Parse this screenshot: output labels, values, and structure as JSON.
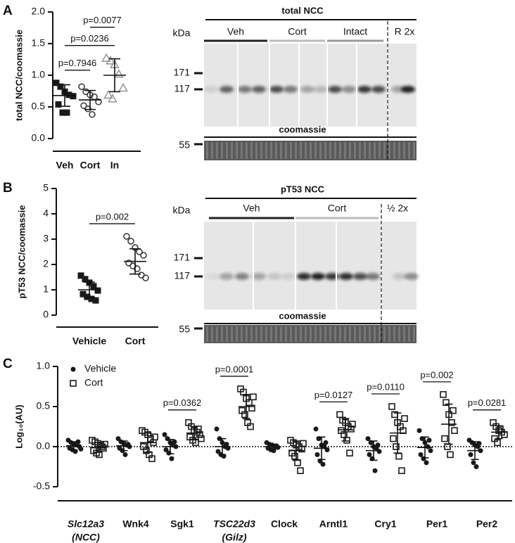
{
  "panels": [
    {
      "letter": "A",
      "blot": {
        "title": "total NCC",
        "unit": "kDa",
        "lanes": [
          {
            "label": "Veh",
            "color": "#222222"
          },
          {
            "label": "Cort",
            "color": "#bbbbbb"
          },
          {
            "label": "Intact",
            "color": "#999999"
          }
        ],
        "extra": "R 2x",
        "markers": [
          "171",
          "117"
        ],
        "loading": "coomassie",
        "loading_marker": "55"
      }
    },
    {
      "letter": "B",
      "blot": {
        "title": "pT53 NCC",
        "unit": "kDa",
        "lanes": [
          {
            "label": "Veh",
            "color": "#222222"
          },
          {
            "label": "Cort",
            "color": "#bbbbbb"
          }
        ],
        "extra": "½ 2x",
        "markers": [
          "171",
          "117"
        ],
        "loading": "coomassie",
        "loading_marker": "55"
      }
    },
    {
      "letter": "C"
    }
  ],
  "chart_data": [
    {
      "type": "dotplot",
      "y_label": "total NCC/coomassie",
      "categories": [
        "Veh",
        "Cort",
        "In"
      ],
      "ylim": [
        0,
        2
      ],
      "yticks": [
        {
          "value": 0,
          "label": "0.0"
        },
        0.5,
        {
          "value": 1,
          "label": "1.0"
        },
        1.5,
        {
          "value": 2,
          "label": "2.0"
        }
      ],
      "series": [
        {
          "markers": [
            "square",
            "circle",
            "triangle"
          ],
          "colors": [
            "#1a1a1a",
            "#333333",
            "#9a9a9a"
          ],
          "points": [
            [
              0.88,
              0.82,
              0.74,
              0.69,
              0.67,
              0.54,
              0.41,
              0.41
            ],
            [
              0.82,
              0.74,
              0.69,
              0.66,
              0.58,
              0.52,
              0.47,
              0.38
            ],
            [
              1.27,
              1.23,
              1.17,
              1.02,
              0.8,
              0.69,
              0.63
            ]
          ],
          "mean": [
            0.68,
            0.61,
            1.0
          ],
          "sd": [
            0.17,
            0.15,
            0.26
          ]
        }
      ],
      "annotations": [
        {
          "text": "p=0.7946",
          "between": [
            0,
            1
          ]
        },
        {
          "text": "p=0.0236",
          "between": [
            0,
            2
          ]
        },
        {
          "text": "p=0.0077",
          "between": [
            1,
            2
          ]
        }
      ]
    },
    {
      "type": "dotplot",
      "y_label": "pT53 NCC/coomassie",
      "categories": [
        "Vehicle",
        "Cort"
      ],
      "ylim": [
        0,
        5
      ],
      "yticks": [
        0,
        1,
        2,
        3,
        4,
        5
      ],
      "series": [
        {
          "markers": [
            "square",
            "circle"
          ],
          "colors": [
            "#1a1a1a",
            "#333333"
          ],
          "points": [
            [
              1.56,
              1.42,
              1.28,
              1.14,
              0.97,
              0.83,
              0.72,
              0.64,
              0.58
            ],
            [
              3.11,
              2.92,
              2.67,
              2.5,
              2.36,
              2.06,
              1.94,
              1.83,
              1.58,
              1.47
            ]
          ],
          "mean": [
            1.0,
            2.12
          ],
          "sd": [
            0.3,
            0.5
          ]
        }
      ],
      "annotations": [
        {
          "text": "p=0.002",
          "between": [
            0,
            1
          ]
        }
      ]
    },
    {
      "type": "dotplot",
      "y_label": "Log₁₀(AU)",
      "zero_line": true,
      "legend": "upper left",
      "categories": [
        [
          "Slc12a3",
          "(NCC)"
        ],
        [
          "Wnk4"
        ],
        [
          "Sgk1"
        ],
        [
          "TSC22d3",
          "(Gilz)"
        ],
        [
          "Clock"
        ],
        [
          "Arntl1"
        ],
        [
          "Cry1"
        ],
        [
          "Per1"
        ],
        [
          "Per2"
        ]
      ],
      "italic": [
        true,
        false,
        false,
        true,
        false,
        false,
        false,
        false,
        false
      ],
      "ylim": [
        -0.5,
        1
      ],
      "yticks": [
        -0.5,
        {
          "value": 0,
          "label": "0.0"
        },
        0.5,
        {
          "value": 1,
          "label": "1.0"
        }
      ],
      "series": [
        {
          "name": "Vehicle",
          "marker": "dot",
          "color": "#1a1a1a",
          "points": [
            [
              0.08,
              0.05,
              0.03,
              0.02,
              0.0,
              -0.02,
              -0.04,
              -0.06,
              0.06,
              -0.03
            ],
            [
              0.1,
              0.06,
              0.04,
              0.02,
              0.0,
              -0.02,
              -0.05,
              -0.1,
              0.03
            ],
            [
              0.15,
              0.1,
              0.05,
              0.02,
              0.0,
              -0.04,
              -0.08,
              -0.15,
              0.06
            ],
            [
              0.22,
              0.1,
              0.05,
              0.0,
              -0.02,
              -0.06,
              -0.1,
              -0.12,
              0.03
            ],
            [
              0.05,
              0.03,
              0.02,
              0.0,
              -0.01,
              -0.02,
              -0.04,
              -0.05,
              0.01
            ],
            [
              0.22,
              0.1,
              0.02,
              0.0,
              -0.04,
              -0.1,
              -0.18,
              -0.22,
              0.05
            ],
            [
              0.1,
              0.05,
              0.0,
              -0.02,
              -0.06,
              -0.1,
              -0.15,
              -0.3,
              0.02
            ],
            [
              0.2,
              0.1,
              0.05,
              0.0,
              -0.05,
              -0.1,
              -0.15,
              -0.2,
              0.08
            ],
            [
              0.08,
              0.05,
              0.02,
              0.0,
              -0.05,
              -0.1,
              -0.2,
              -0.25,
              0.04
            ]
          ],
          "mean": [
            0.01,
            0.01,
            0.0,
            0.0,
            0.0,
            -0.02,
            -0.05,
            -0.01,
            -0.05
          ],
          "sd": [
            0.05,
            0.06,
            0.09,
            0.1,
            0.03,
            0.14,
            0.12,
            0.13,
            0.11
          ]
        },
        {
          "name": "Cort",
          "marker": "open_square",
          "color": "#1a1a1a",
          "points": [
            [
              0.08,
              0.06,
              0.04,
              0.02,
              -0.02,
              -0.05,
              -0.08,
              -0.1,
              0.0,
              0.03
            ],
            [
              0.2,
              0.18,
              0.15,
              0.1,
              0.05,
              0.0,
              -0.05,
              -0.1,
              -0.15,
              0.12
            ],
            [
              0.3,
              0.25,
              0.2,
              0.18,
              0.15,
              0.12,
              0.08,
              0.05,
              0.22,
              0.1
            ],
            [
              0.72,
              0.68,
              0.6,
              0.55,
              0.48,
              0.45,
              0.4,
              0.3,
              0.25,
              0.62
            ],
            [
              0.08,
              0.05,
              0.02,
              0.0,
              -0.03,
              -0.08,
              -0.12,
              -0.2,
              -0.3,
              0.04
            ],
            [
              0.4,
              0.33,
              0.3,
              0.25,
              0.22,
              0.2,
              0.15,
              0.08,
              -0.08,
              0.28
            ],
            [
              0.5,
              0.4,
              0.3,
              0.25,
              0.2,
              0.1,
              0.0,
              -0.12,
              -0.3,
              0.35
            ],
            [
              0.65,
              0.55,
              0.4,
              0.3,
              0.2,
              0.1,
              0.0,
              -0.1,
              0.45
            ],
            [
              0.3,
              0.25,
              0.2,
              0.18,
              0.15,
              0.1,
              0.05,
              0.22
            ]
          ],
          "mean": [
            -0.01,
            0.05,
            0.17,
            0.5,
            -0.05,
            0.21,
            0.17,
            0.28,
            0.18
          ],
          "sd": [
            0.06,
            0.12,
            0.08,
            0.15,
            0.12,
            0.14,
            0.25,
            0.25,
            0.08
          ]
        }
      ],
      "annotations": [
        {
          "text": "p=0.0362",
          "category": 2
        },
        {
          "text": "p=0.0001",
          "category": 3
        },
        {
          "text": "p=0.0127",
          "category": 5
        },
        {
          "text": "p=0.0110",
          "category": 6
        },
        {
          "text": "p=0.002",
          "category": 7
        },
        {
          "text": "p=0.0281",
          "category": 8
        }
      ]
    }
  ]
}
